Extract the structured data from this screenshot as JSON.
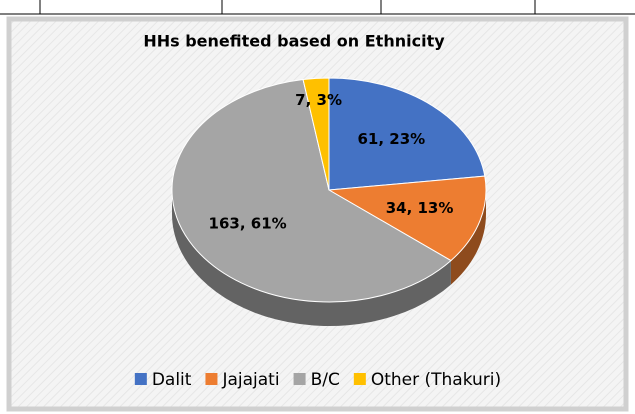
{
  "chart_data": {
    "type": "pie",
    "title": "HHs benefited based on Ethnicity",
    "categories": [
      "Dalit",
      "Jajajati",
      "B/C",
      "Other (Thakuri)"
    ],
    "values": [
      61,
      34,
      163,
      7
    ],
    "value_labels": [
      "61, 23%",
      "34, 13%",
      "163, 61%",
      "7, 3%"
    ],
    "colors": [
      "#4472c4",
      "#ed7d31",
      "#a5a5a5",
      "#ffc000"
    ],
    "legend": "bottom"
  }
}
